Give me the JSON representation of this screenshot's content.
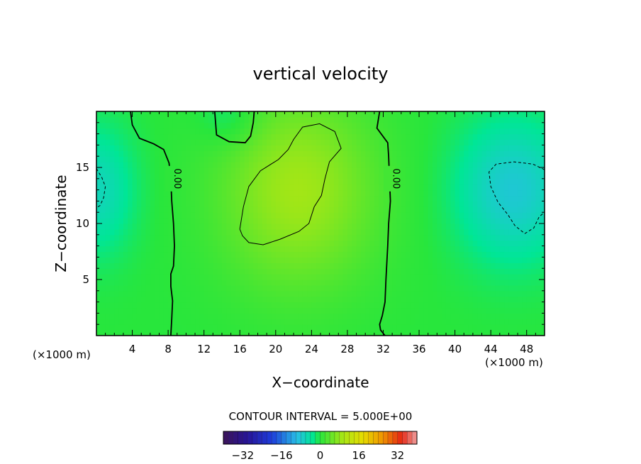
{
  "chart_data": {
    "type": "contour",
    "title": "vertical velocity",
    "xlabel": "X−coordinate",
    "ylabel": "Z−coordinate",
    "x_unit_left": "(×1000 m)",
    "x_unit_right": "(×1000 m)",
    "xlim": [
      0,
      50
    ],
    "ylim": [
      0,
      20
    ],
    "x_ticks": [
      "4",
      "8",
      "12",
      "16",
      "20",
      "24",
      "28",
      "32",
      "36",
      "40",
      "44",
      "48"
    ],
    "y_ticks": [
      "5",
      "10",
      "15"
    ],
    "contour_interval_text": "CONTOUR INTERVAL = 5.000E+00",
    "contour_levels": [
      -5,
      0,
      5
    ],
    "contour_label_text": "0.00",
    "colorbar": {
      "min": -40,
      "max": 40,
      "ticks": [
        "−32",
        "−16",
        "0",
        "16",
        "32"
      ],
      "tick_values": [
        -32,
        -16,
        0,
        16,
        32
      ]
    },
    "contours": [
      {
        "level": 0,
        "style": "solid",
        "label": "0.00",
        "points": [
          [
            3.8,
            20
          ],
          [
            4,
            18.8
          ],
          [
            4.8,
            17.6
          ],
          [
            6.4,
            17.1
          ],
          [
            7.5,
            16.6
          ],
          [
            8.1,
            15.4
          ],
          [
            8.3,
            14
          ],
          [
            8.4,
            12
          ],
          [
            8.6,
            10
          ],
          [
            8.7,
            8
          ],
          [
            8.6,
            6.2
          ],
          [
            8.3,
            5.5
          ],
          [
            8.3,
            4.4
          ],
          [
            8.5,
            3.1
          ],
          [
            8.4,
            1.5
          ],
          [
            8.3,
            0
          ]
        ]
      },
      {
        "level": 0,
        "style": "solid",
        "label": "0.00",
        "points": [
          [
            31.6,
            20
          ],
          [
            31.3,
            18.5
          ],
          [
            32.5,
            17.2
          ],
          [
            32.6,
            16
          ],
          [
            32.7,
            14
          ],
          [
            32.8,
            12
          ],
          [
            32.6,
            10
          ],
          [
            32.5,
            8
          ],
          [
            32.3,
            5
          ],
          [
            32.2,
            3
          ],
          [
            31.9,
            1.8
          ],
          [
            31.6,
            1
          ],
          [
            31.7,
            0.5
          ],
          [
            32.2,
            0
          ]
        ]
      },
      {
        "level": 0,
        "style": "solid",
        "points": [
          [
            13.2,
            20
          ],
          [
            13.4,
            17.9
          ],
          [
            14.8,
            17.3
          ],
          [
            16.6,
            17.2
          ],
          [
            17.2,
            17.8
          ],
          [
            17.5,
            19
          ],
          [
            17.6,
            20
          ]
        ]
      },
      {
        "level": 5,
        "style": "solid",
        "points": [
          [
            16,
            9.5
          ],
          [
            16.4,
            11.5
          ],
          [
            17,
            13.3
          ],
          [
            18.3,
            14.7
          ],
          [
            20.3,
            15.7
          ],
          [
            21.4,
            16.6
          ],
          [
            22,
            17.5
          ],
          [
            23,
            18.6
          ],
          [
            24.9,
            18.9
          ],
          [
            26.6,
            18.2
          ],
          [
            27.3,
            16.7
          ],
          [
            26,
            15.5
          ],
          [
            25.5,
            14
          ],
          [
            25.1,
            12.5
          ],
          [
            24.3,
            11.5
          ],
          [
            23.7,
            10
          ],
          [
            22.6,
            9.3
          ],
          [
            20.5,
            8.6
          ],
          [
            18.6,
            8.1
          ],
          [
            17,
            8.3
          ],
          [
            16.3,
            8.9
          ],
          [
            16,
            9.5
          ]
        ]
      },
      {
        "level": -5,
        "style": "dashed",
        "points": [
          [
            0,
            14.9
          ],
          [
            0.6,
            14.1
          ],
          [
            1,
            13.3
          ],
          [
            0.8,
            12.3
          ],
          [
            0.4,
            11.6
          ],
          [
            0,
            11.4
          ]
        ]
      },
      {
        "level": -5,
        "style": "dashed",
        "points": [
          [
            50,
            14.8
          ],
          [
            48.7,
            15.3
          ],
          [
            46.6,
            15.5
          ],
          [
            44.6,
            15.3
          ],
          [
            43.8,
            14.6
          ],
          [
            44,
            13.3
          ],
          [
            44.8,
            11.9
          ],
          [
            45.9,
            10.8
          ],
          [
            46.7,
            9.8
          ],
          [
            47.8,
            9.1
          ],
          [
            48.8,
            9.6
          ],
          [
            49.4,
            10.6
          ],
          [
            50,
            11
          ]
        ]
      }
    ],
    "field_centers": [
      {
        "x": 22.5,
        "z": 13,
        "amplitude": 9,
        "sx": 6,
        "sz": 6
      },
      {
        "x": 46.5,
        "z": 13,
        "amplitude": -8,
        "sx": 4.5,
        "sz": 4.5
      },
      {
        "x": 0,
        "z": 13,
        "amplitude": -6,
        "sx": 3,
        "sz": 4
      },
      {
        "x": 15,
        "z": 19.5,
        "amplitude": -3,
        "sx": 2.5,
        "sz": 2
      }
    ],
    "grid": false,
    "legend": "colorbar-bottom"
  }
}
